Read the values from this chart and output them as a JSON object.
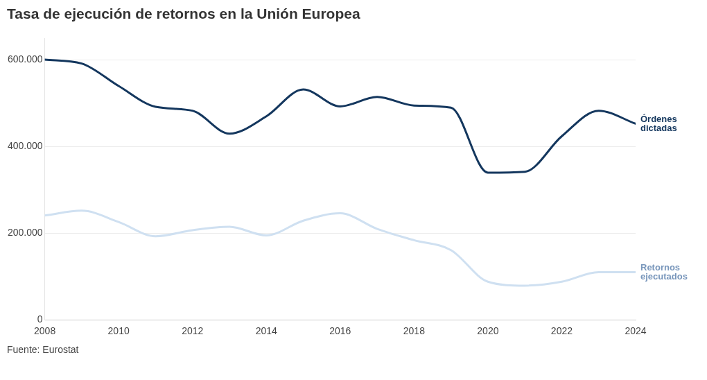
{
  "chart_data": {
    "type": "line",
    "title": "Tasa de ejecución de retornos en la Unión Europea",
    "annotations": [
      "Fuente: Eurostat"
    ],
    "x": [
      2008,
      2009,
      2010,
      2011,
      2012,
      2013,
      2014,
      2015,
      2016,
      2017,
      2018,
      2019,
      2020,
      2021,
      2022,
      2023,
      2024
    ],
    "series": [
      {
        "name": "Órdenes dictadas",
        "color": "#14375e",
        "values": [
          601000,
          592000,
          540000,
          492000,
          483000,
          430000,
          470000,
          532000,
          493000,
          515000,
          495000,
          490000,
          340000,
          342000,
          424000,
          483000,
          453000
        ]
      },
      {
        "name": "Retornos ejecutados",
        "color": "#cfe0f1",
        "values": [
          241000,
          252000,
          226000,
          193000,
          207000,
          215000,
          195000,
          229000,
          246000,
          210000,
          184000,
          161000,
          88000,
          79000,
          88000,
          110000,
          110000
        ]
      }
    ],
    "xlim": [
      2008,
      2024
    ],
    "xticks": [
      2008,
      2010,
      2012,
      2014,
      2016,
      2018,
      2020,
      2022,
      2024
    ],
    "ylim": [
      0,
      650000
    ],
    "yticks": [
      0,
      {
        "value": 200000,
        "label": "200.000"
      },
      {
        "value": 400000,
        "label": "400.000"
      },
      {
        "value": 600000,
        "label": "600.000"
      }
    ],
    "grid": "y",
    "legend": false,
    "marker": "none",
    "line_style": "solid"
  }
}
